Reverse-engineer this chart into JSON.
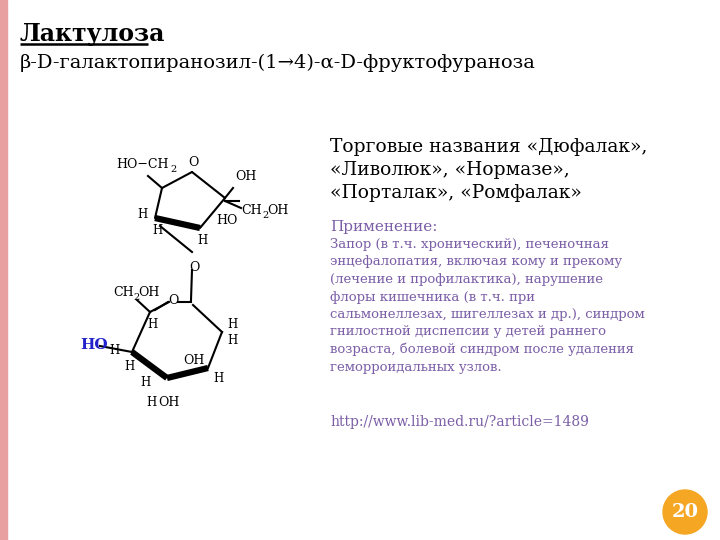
{
  "title": "Лактулоза",
  "subtitle": "β-D-галактопиранозил-(1→4)-α-D-фруктофураноза",
  "trade_names_header": "Торговые названия «Дюфалак»,",
  "trade_names_line2": "«Ливолюк», «Нормазе»,",
  "trade_names_line3": "«Порталак», «Ромфалак»",
  "apply_header": "Применение:",
  "apply_text_line1": "Запор (в т.ч. хронический), печеночная",
  "apply_text_line2": "энцефалопатия, включая кому и прекому",
  "apply_text_line3": "(лечение и профилактика), нарушение",
  "apply_text_line4": "флоры кишечника (в т.ч. при",
  "apply_text_line5": "сальмонеллезах, шигеллезах и др.), синдром",
  "apply_text_line6": "гнилостной диспепсии у детей раннего",
  "apply_text_line7": "возраста, болевой синдром после удаления",
  "apply_text_line8": "геморроидальных узлов.",
  "url": "http://www.lib-med.ru/?article=1489",
  "page_num": "20",
  "bg_color": "#ffffff",
  "title_color": "#000000",
  "subtitle_color": "#000000",
  "trade_color": "#000000",
  "apply_header_color": "#7b5ea7",
  "apply_text_color": "#7b5ea7",
  "url_color": "#7b5ea7",
  "page_circle_color": "#f5a623",
  "page_num_color": "#ffffff",
  "left_border_color": "#e8a0a0",
  "ho_blue_color": "#2222cc",
  "bond_color": "#000000"
}
